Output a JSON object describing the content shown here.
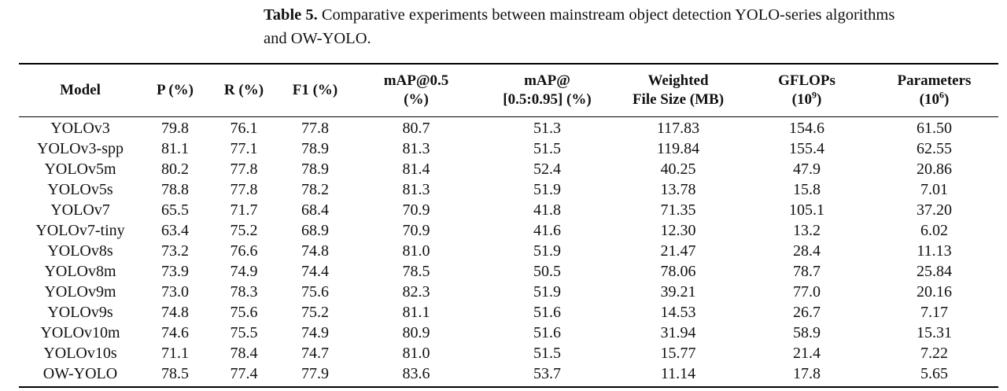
{
  "caption": {
    "label": "Table 5.",
    "text": "Comparative experiments between mainstream object detection YOLO-series algorithms",
    "text_line2": "and OW-YOLO."
  },
  "table": {
    "headers": {
      "model": "Model",
      "p": "P (%)",
      "r": "R (%)",
      "f1": "F1 (%)",
      "map50_line1": "mAP@0.5",
      "map50_line2": "(%)",
      "map5095_line1": "mAP@",
      "map5095_line2": "[0.5:0.95] (%)",
      "weighted_line1": "Weighted",
      "weighted_line2": "File Size (MB)",
      "gflops_line1": "GFLOPs",
      "gflops_base": "(10",
      "gflops_exp": "9",
      "gflops_close": ")",
      "params_line1": "Parameters",
      "params_base": "(10",
      "params_exp": "6",
      "params_close": ")"
    },
    "rows": [
      {
        "model": "YOLOv3",
        "p": "79.8",
        "r": "76.1",
        "f1": "77.8",
        "map50": "80.7",
        "map5095": "51.3",
        "size": "117.83",
        "gflops": "154.6",
        "params": "61.50"
      },
      {
        "model": "YOLOv3-spp",
        "p": "81.1",
        "r": "77.1",
        "f1": "78.9",
        "map50": "81.3",
        "map5095": "51.5",
        "size": "119.84",
        "gflops": "155.4",
        "params": "62.55"
      },
      {
        "model": "YOLOv5m",
        "p": "80.2",
        "r": "77.8",
        "f1": "78.9",
        "map50": "81.4",
        "map5095": "52.4",
        "size": "40.25",
        "gflops": "47.9",
        "params": "20.86"
      },
      {
        "model": "YOLOv5s",
        "p": "78.8",
        "r": "77.8",
        "f1": "78.2",
        "map50": "81.3",
        "map5095": "51.9",
        "size": "13.78",
        "gflops": "15.8",
        "params": "7.01"
      },
      {
        "model": "YOLOv7",
        "p": "65.5",
        "r": "71.7",
        "f1": "68.4",
        "map50": "70.9",
        "map5095": "41.8",
        "size": "71.35",
        "gflops": "105.1",
        "params": "37.20"
      },
      {
        "model": "YOLOv7-tiny",
        "p": "63.4",
        "r": "75.2",
        "f1": "68.9",
        "map50": "70.9",
        "map5095": "41.6",
        "size": "12.30",
        "gflops": "13.2",
        "params": "6.02"
      },
      {
        "model": "YOLOv8s",
        "p": "73.2",
        "r": "76.6",
        "f1": "74.8",
        "map50": "81.0",
        "map5095": "51.9",
        "size": "21.47",
        "gflops": "28.4",
        "params": "11.13"
      },
      {
        "model": "YOLOv8m",
        "p": "73.9",
        "r": "74.9",
        "f1": "74.4",
        "map50": "78.5",
        "map5095": "50.5",
        "size": "78.06",
        "gflops": "78.7",
        "params": "25.84"
      },
      {
        "model": "YOLOv9m",
        "p": "73.0",
        "r": "78.3",
        "f1": "75.6",
        "map50": "82.3",
        "map5095": "51.9",
        "size": "39.21",
        "gflops": "77.0",
        "params": "20.16"
      },
      {
        "model": "YOLOv9s",
        "p": "74.8",
        "r": "75.6",
        "f1": "75.2",
        "map50": "81.1",
        "map5095": "51.6",
        "size": "14.53",
        "gflops": "26.7",
        "params": "7.17"
      },
      {
        "model": "YOLOv10m",
        "p": "74.6",
        "r": "75.5",
        "f1": "74.9",
        "map50": "80.9",
        "map5095": "51.6",
        "size": "31.94",
        "gflops": "58.9",
        "params": "15.31"
      },
      {
        "model": "YOLOv10s",
        "p": "71.1",
        "r": "78.4",
        "f1": "74.7",
        "map50": "81.0",
        "map5095": "51.5",
        "size": "15.77",
        "gflops": "21.4",
        "params": "7.22"
      },
      {
        "model": "OW-YOLO",
        "p": "78.5",
        "r": "77.4",
        "f1": "77.9",
        "map50": "83.6",
        "map5095": "53.7",
        "size": "11.14",
        "gflops": "17.8",
        "params": "5.65"
      }
    ]
  }
}
